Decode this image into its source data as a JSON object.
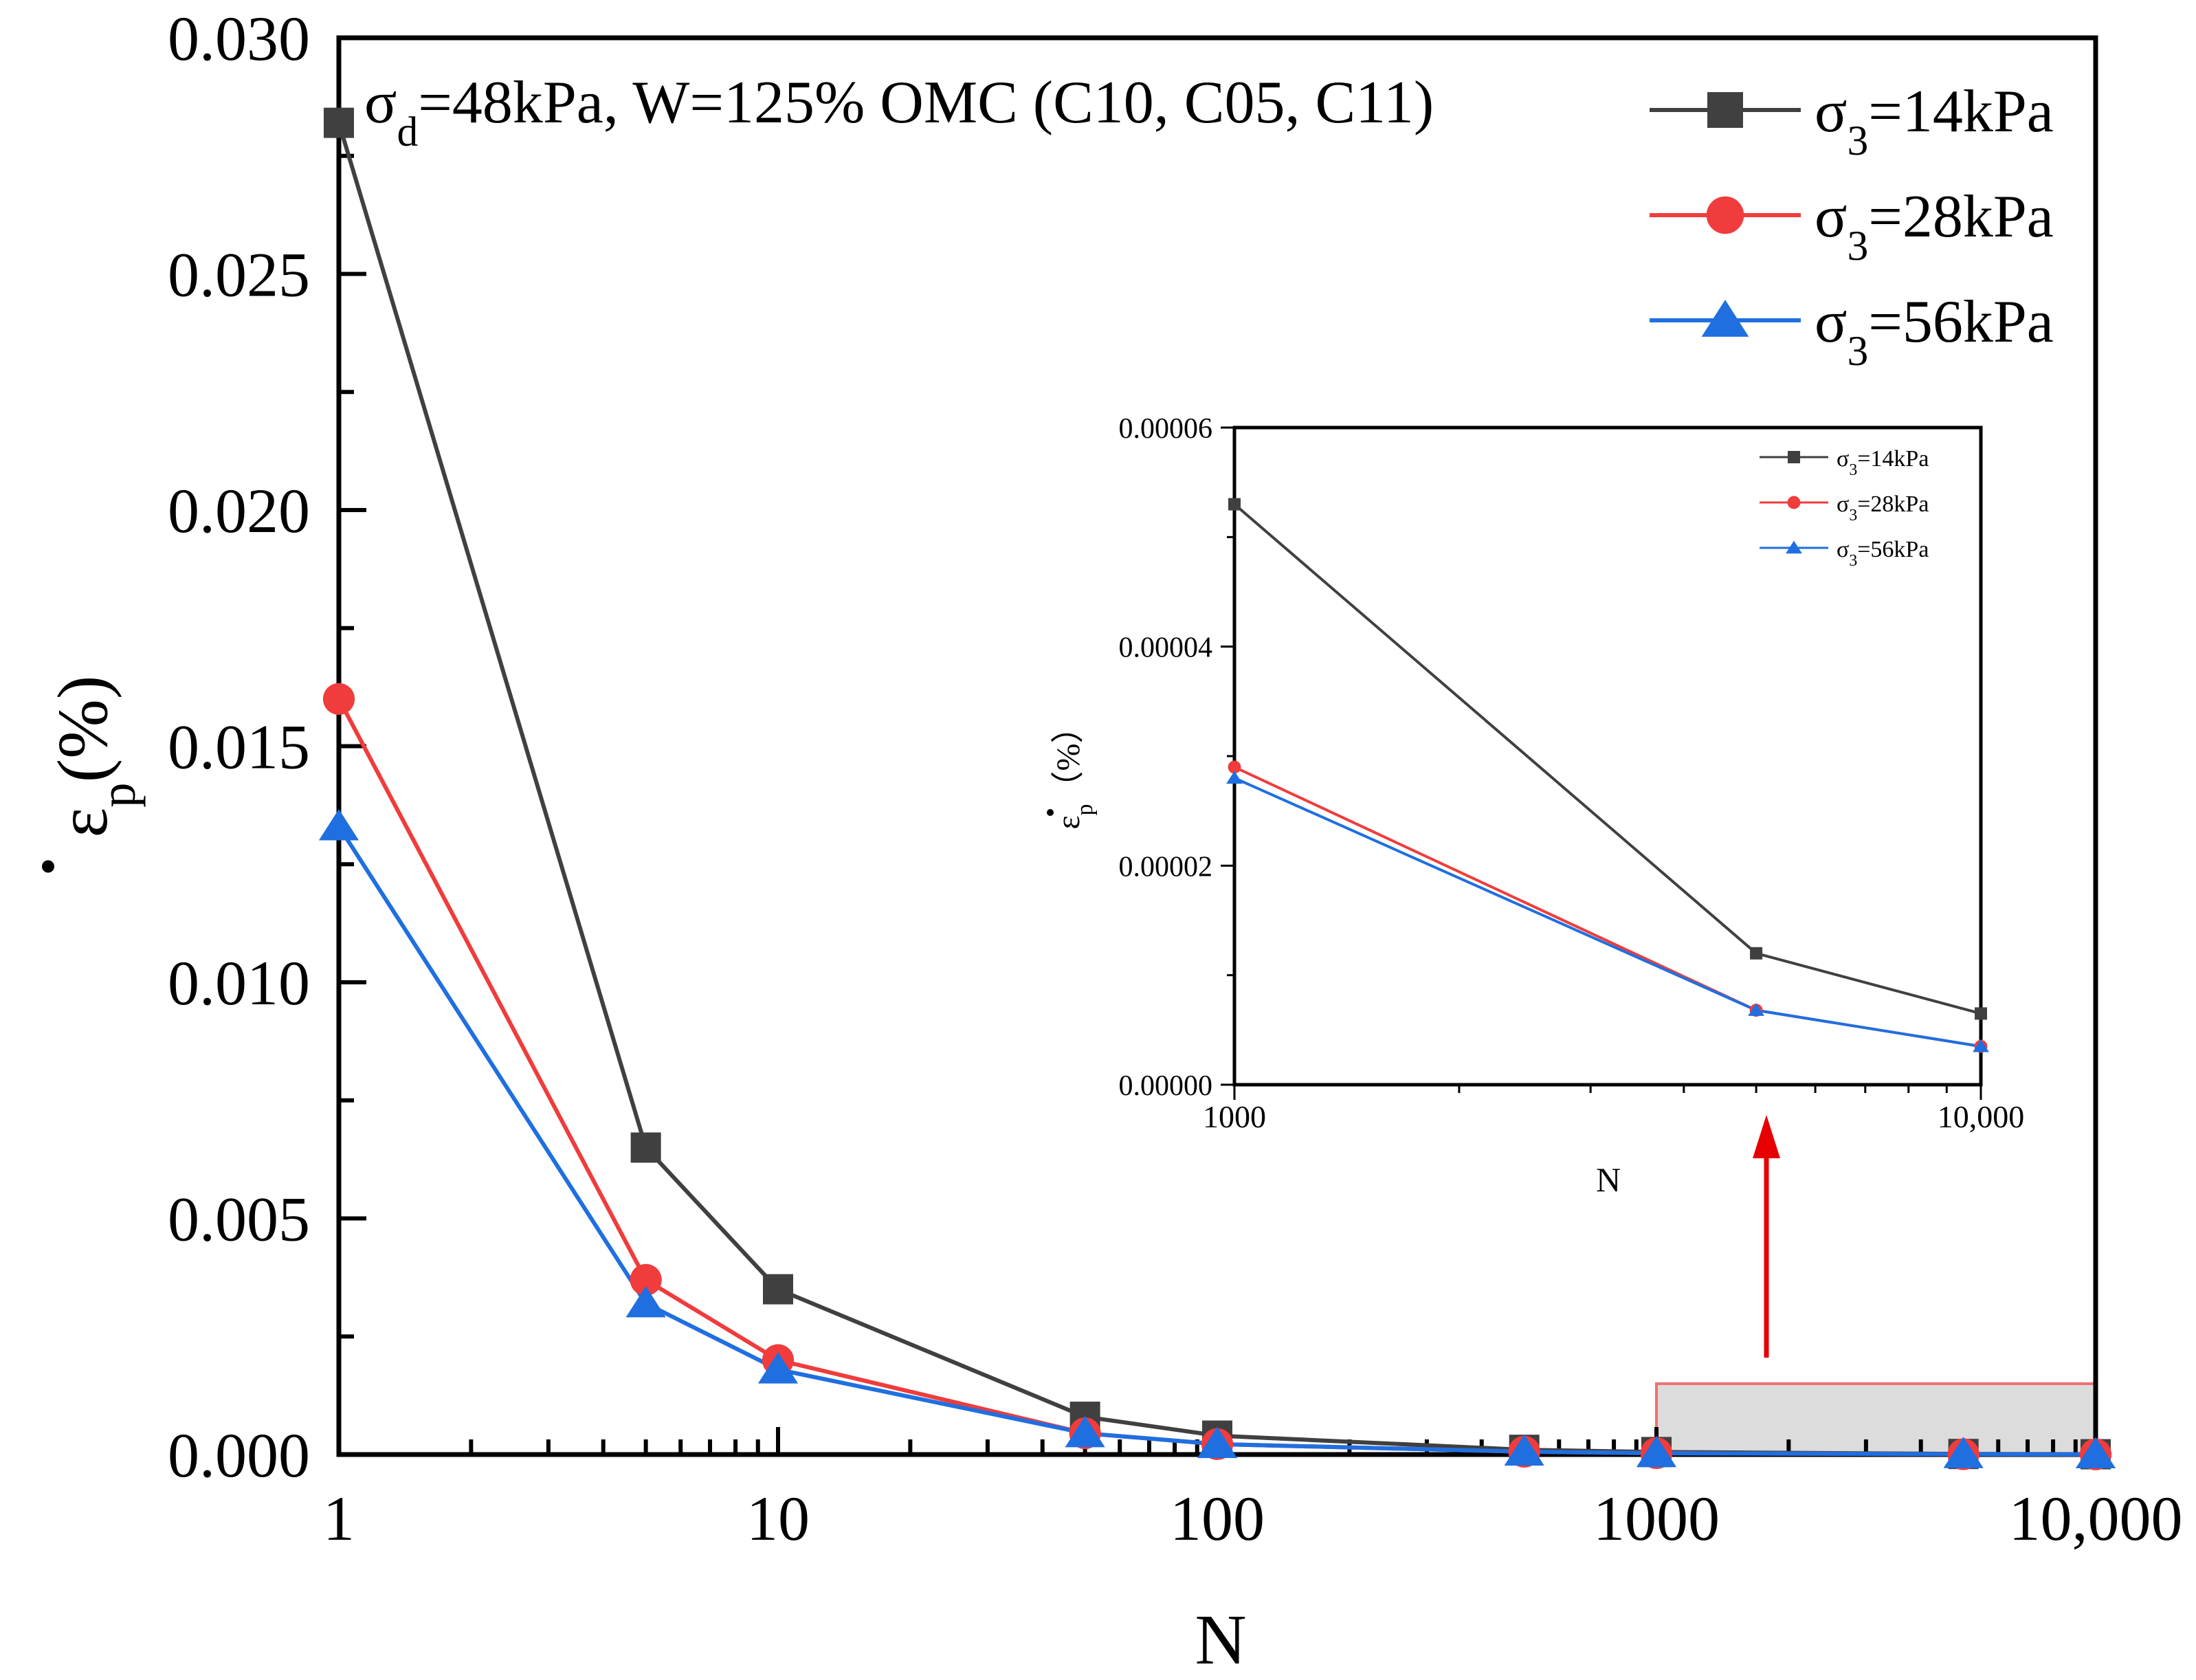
{
  "chart_data": [
    {
      "type": "line",
      "x_scale": "log",
      "annotation": {
        "prefix": "σ",
        "sub": "d",
        "text": "=48kPa, W=125% OMC (C10, C05, C11)"
      },
      "xlabel": "N",
      "ylabel": {
        "symbol": "ε",
        "sub": "p",
        "unit": "(%)"
      },
      "xlim": [
        1,
        10000
      ],
      "ylim": [
        0,
        0.03
      ],
      "xticks": [
        1,
        10,
        100,
        1000,
        10000
      ],
      "xtick_labels": [
        "1",
        "10",
        "100",
        "1000",
        "10,000"
      ],
      "yticks": [
        0,
        0.005,
        0.01,
        0.015,
        0.02,
        0.025,
        0.03
      ],
      "ytick_labels": [
        "0.000",
        "0.005",
        "0.010",
        "0.015",
        "0.020",
        "0.025",
        "0.030"
      ],
      "legend_position": "top-right",
      "series": [
        {
          "name": "σ3=14kPa",
          "legend_prefix": "σ",
          "legend_sub": "3",
          "legend_suffix": "=14kPa",
          "color": "#404040",
          "marker": "square",
          "x": [
            1,
            5,
            10,
            50,
            100,
            500,
            1000,
            5000,
            10000
          ],
          "y": [
            0.0282,
            0.0065,
            0.0035,
            0.0008,
            0.0004,
            0.0001,
            5.3e-05,
            1.2e-05,
            6.5e-06
          ]
        },
        {
          "name": "σ3=28kPa",
          "legend_prefix": "σ",
          "legend_sub": "3",
          "legend_suffix": "=28kPa",
          "color": "#f03c3c",
          "marker": "circle",
          "x": [
            1,
            5,
            10,
            50,
            100,
            500,
            1000,
            5000,
            10000
          ],
          "y": [
            0.016,
            0.0037,
            0.002,
            0.00045,
            0.00022,
            6e-05,
            2.9e-05,
            6.8e-06,
            3.5e-06
          ]
        },
        {
          "name": "σ3=56kPa",
          "legend_prefix": "σ",
          "legend_sub": "3",
          "legend_suffix": "=56kPa",
          "color": "#1f6fe0",
          "marker": "triangle",
          "x": [
            1,
            5,
            10,
            50,
            100,
            500,
            1000,
            5000,
            10000
          ],
          "y": [
            0.0133,
            0.0032,
            0.0018,
            0.00045,
            0.00022,
            6e-05,
            2.8e-05,
            6.8e-06,
            3.5e-06
          ]
        }
      ]
    },
    {
      "type": "line",
      "role": "inset",
      "x_scale": "log",
      "xlabel": "N",
      "ylabel": {
        "symbol": "ε",
        "sub": "p",
        "unit": "（%）"
      },
      "xlim": [
        1000,
        10000
      ],
      "ylim": [
        0,
        6e-05
      ],
      "xticks": [
        1000,
        10000
      ],
      "xtick_labels": [
        "1000",
        "10,000"
      ],
      "yticks": [
        0,
        2e-05,
        4e-05,
        6e-05
      ],
      "ytick_labels": [
        "0.00000",
        "0.00002",
        "0.00004",
        "0.00006"
      ],
      "legend_position": "top-right",
      "series": [
        {
          "name": "σ3=14kPa",
          "legend_prefix": "σ",
          "legend_sub": "3",
          "legend_suffix": "=14kPa",
          "color": "#404040",
          "marker": "square",
          "x": [
            1000,
            5000,
            10000
          ],
          "y": [
            5.3e-05,
            1.2e-05,
            6.5e-06
          ]
        },
        {
          "name": "σ3=28kPa",
          "legend_prefix": "σ",
          "legend_sub": "3",
          "legend_suffix": "=28kPa",
          "color": "#f03c3c",
          "marker": "circle",
          "x": [
            1000,
            5000,
            10000
          ],
          "y": [
            2.9e-05,
            6.8e-06,
            3.5e-06
          ]
        },
        {
          "name": "σ3=56kPa",
          "legend_prefix": "σ",
          "legend_sub": "3",
          "legend_suffix": "=56kPa",
          "color": "#1f6fe0",
          "marker": "triangle",
          "x": [
            1000,
            5000,
            10000
          ],
          "y": [
            2.8e-05,
            6.8e-06,
            3.5e-06
          ]
        }
      ]
    }
  ],
  "zoom_region": {
    "x_from": 1000,
    "x_to": 10000,
    "y_from": 0,
    "y_to": 0.0015,
    "fill": "#dcdcdc",
    "stroke": "#f07070"
  },
  "arrow_color": "#e60000"
}
